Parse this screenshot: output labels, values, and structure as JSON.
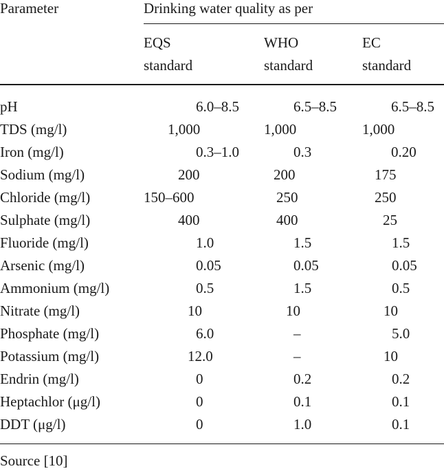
{
  "table": {
    "header": {
      "parameter": "Parameter",
      "group": "Drinking water quality as per",
      "cols": [
        {
          "line1": "EQS",
          "line2": "standard"
        },
        {
          "line1": "WHO",
          "line2": "standard"
        },
        {
          "line1": "EC",
          "line2": "standard"
        }
      ]
    },
    "rows": [
      {
        "param": "pH",
        "eqs": "6.0–8.5",
        "who": "6.5–8.5",
        "ec": "6.5–8.5"
      },
      {
        "param": "TDS (mg/l)",
        "eqs": "1,000",
        "who": "1,000",
        "ec": "1,000"
      },
      {
        "param": "Iron (mg/l)",
        "eqs": "0.3–1.0",
        "who": "0.3",
        "ec": "0.20"
      },
      {
        "param": "Sodium (mg/l)",
        "eqs": "200",
        "who": "200",
        "ec": "175"
      },
      {
        "param": "Chloride (mg/l)",
        "eqs": "150–600",
        "who": "250",
        "ec": "250"
      },
      {
        "param": "Sulphate (mg/l)",
        "eqs": "400",
        "who": "400",
        "ec": "25"
      },
      {
        "param": "Fluoride (mg/l)",
        "eqs": "1.0",
        "who": "1.5",
        "ec": "1.5"
      },
      {
        "param": "Arsenic (mg/l)",
        "eqs": "0.05",
        "who": "0.05",
        "ec": "0.05"
      },
      {
        "param": "Ammonium (mg/l)",
        "eqs": "0.5",
        "who": "1.5",
        "ec": "0.5"
      },
      {
        "param": "Nitrate (mg/l)",
        "eqs": "10",
        "who": "10",
        "ec": "10"
      },
      {
        "param": "Phosphate (mg/l)",
        "eqs": "6.0",
        "who": "–",
        "ec": "5.0"
      },
      {
        "param": "Potassium (mg/l)",
        "eqs": "12.0",
        "who": "–",
        "ec": "10"
      },
      {
        "param": "Endrin (mg/l)",
        "eqs": "0",
        "who": "0.2",
        "ec": "0.2"
      },
      {
        "param": "Heptachlor (μg/l)",
        "eqs": "0",
        "who": "0.1",
        "ec": "0.1"
      },
      {
        "param": "DDT (μg/l)",
        "eqs": "0",
        "who": "1.0",
        "ec": "0.1"
      }
    ],
    "source": "Source [10]"
  }
}
